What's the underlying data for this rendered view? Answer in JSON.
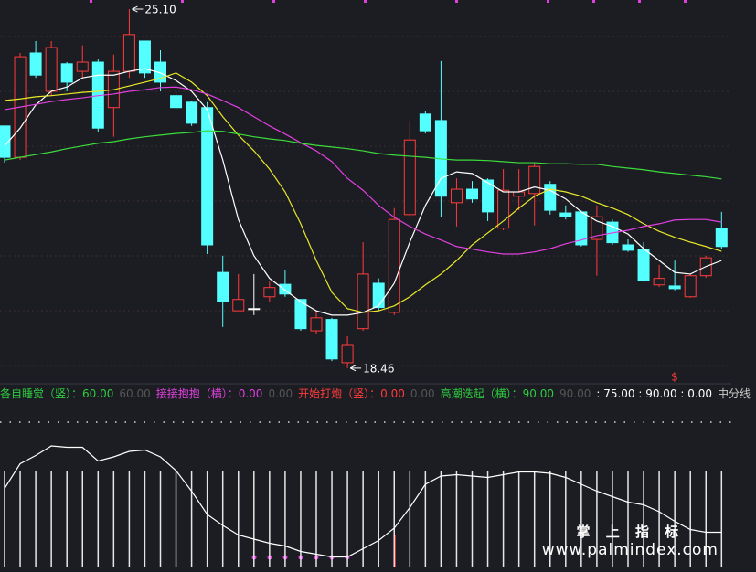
{
  "chart_data": {
    "type": "candlestick",
    "ylim": [
      18.17,
      25.27
    ],
    "candles": {
      "open": [
        22.94,
        22.36,
        24.29,
        23.58,
        24.09,
        23.95,
        24.12,
        23.28,
        23.95,
        24.51,
        24.12,
        23.5,
        23.38,
        23.28,
        20.23,
        19.52,
        19.56,
        19.78,
        20.01,
        19.73,
        19.15,
        19.36,
        18.56,
        19.19,
        20.03,
        19.49,
        21.3,
        23.16,
        23.04,
        21.52,
        21.77,
        21.94,
        21.05,
        21.64,
        21.69,
        21.86,
        21.33,
        21.35,
        20.84,
        21.16,
        20.74,
        20.66,
        20.0,
        19.98,
        19.78,
        20.17,
        21.05
      ],
      "high": [
        22.94,
        24.29,
        24.51,
        24.51,
        24.12,
        24.43,
        24.17,
        24.26,
        25.1,
        24.51,
        24.34,
        23.58,
        23.41,
        23.38,
        20.54,
        20.2,
        20.2,
        20.06,
        20.28,
        19.73,
        19.52,
        19.39,
        19.05,
        20.79,
        20.12,
        21.42,
        23.04,
        23.21,
        24.14,
        21.97,
        21.92,
        21.97,
        22.14,
        22.14,
        22.26,
        21.92,
        21.47,
        21.38,
        21.47,
        21.21,
        20.84,
        20.79,
        20.37,
        20.45,
        20.2,
        20.54,
        21.35
      ],
      "low": [
        22.26,
        22.31,
        23.83,
        23.5,
        23.58,
        23.83,
        22.82,
        22.74,
        23.83,
        23.83,
        23.58,
        23.24,
        22.94,
        20.57,
        19.22,
        19.52,
        19.44,
        19.69,
        19.78,
        19.15,
        19.1,
        18.59,
        18.46,
        19.15,
        19.52,
        19.44,
        21.25,
        22.8,
        21.25,
        21.08,
        21.52,
        21.18,
        21.01,
        21.38,
        21.1,
        21.3,
        21.21,
        20.71,
        20.17,
        20.74,
        20.61,
        20.06,
        19.96,
        19.9,
        19.76,
        20.13,
        20.67
      ],
      "close": [
        22.36,
        24.22,
        23.88,
        24.39,
        23.75,
        24.12,
        22.9,
        23.95,
        24.63,
        23.92,
        23.75,
        23.28,
        22.99,
        20.74,
        19.69,
        19.73,
        19.56,
        19.95,
        19.83,
        19.19,
        19.39,
        18.63,
        18.88,
        20.2,
        19.58,
        21.21,
        22.68,
        22.85,
        21.64,
        21.77,
        21.59,
        21.35,
        21.75,
        21.72,
        22.19,
        21.38,
        21.26,
        20.74,
        21.26,
        20.78,
        20.64,
        20.08,
        20.12,
        19.93,
        20.17,
        20.5,
        20.71
      ],
      "up_color": "#ff3b3b",
      "down_color": "#54ffff",
      "flat_color": "#ffffff"
    },
    "series": [
      {
        "color": "#ffffff",
        "values": [
          22.57,
          22.9,
          23.33,
          23.58,
          23.66,
          23.83,
          23.88,
          23.88,
          23.95,
          24.0,
          23.92,
          23.78,
          23.58,
          23.24,
          22.31,
          21.21,
          20.54,
          20.12,
          19.9,
          19.69,
          19.52,
          19.44,
          19.44,
          19.49,
          19.61,
          20.03,
          20.79,
          21.47,
          21.97,
          22.09,
          22.06,
          21.89,
          21.72,
          21.72,
          21.81,
          21.75,
          21.59,
          21.35,
          21.18,
          21.08,
          20.94,
          20.67,
          20.45,
          20.23,
          20.2,
          20.34,
          20.45
        ]
      },
      {
        "color": "#e8e82a",
        "values": [
          23.41,
          23.44,
          23.48,
          23.5,
          23.53,
          23.56,
          23.58,
          23.61,
          23.68,
          23.75,
          23.82,
          23.92,
          23.75,
          23.5,
          23.11,
          22.77,
          22.48,
          22.14,
          21.72,
          21.13,
          20.45,
          19.86,
          19.56,
          19.49,
          19.52,
          19.61,
          19.78,
          20.0,
          20.2,
          20.45,
          20.74,
          20.96,
          21.18,
          21.42,
          21.64,
          21.77,
          21.72,
          21.64,
          21.52,
          21.42,
          21.3,
          21.13,
          20.99,
          20.88,
          20.79,
          20.71,
          20.62
        ]
      },
      {
        "color": "#e040e0",
        "values": [
          23.24,
          23.29,
          23.34,
          23.39,
          23.43,
          23.46,
          23.5,
          23.53,
          23.58,
          23.61,
          23.65,
          23.66,
          23.61,
          23.53,
          23.41,
          23.28,
          23.11,
          22.94,
          22.79,
          22.63,
          22.48,
          22.28,
          21.97,
          21.75,
          21.47,
          21.25,
          21.08,
          20.94,
          20.83,
          20.71,
          20.66,
          20.61,
          20.57,
          20.57,
          20.61,
          20.67,
          20.76,
          20.83,
          20.91,
          20.96,
          21.01,
          21.08,
          21.13,
          21.2,
          21.21,
          21.21,
          21.16
        ]
      },
      {
        "color": "#3ddc3d",
        "values": [
          22.31,
          22.36,
          22.41,
          22.46,
          22.52,
          22.57,
          22.62,
          22.65,
          22.7,
          22.74,
          22.77,
          22.8,
          22.82,
          22.85,
          22.84,
          22.79,
          22.74,
          22.7,
          22.67,
          22.62,
          22.58,
          22.55,
          22.52,
          22.48,
          22.43,
          22.4,
          22.38,
          22.36,
          22.33,
          22.31,
          22.31,
          22.3,
          22.28,
          22.26,
          22.26,
          22.24,
          22.24,
          22.23,
          22.23,
          22.19,
          22.16,
          22.13,
          22.09,
          22.06,
          22.03,
          22.0,
          21.96
        ]
      }
    ],
    "annotations": [
      {
        "value": 25.1,
        "label": "25.10",
        "at": "high"
      },
      {
        "value": 18.46,
        "label": "18.46",
        "at": "low"
      }
    ],
    "indicator": {
      "ylim": [
        0,
        100
      ],
      "color": "#ffffff",
      "values": [
        57,
        75,
        81,
        88,
        87,
        87,
        77,
        80,
        84,
        85,
        80,
        70,
        55,
        38,
        30,
        23,
        20,
        17,
        15,
        11,
        9,
        7,
        7,
        13,
        19,
        28,
        43,
        60,
        66,
        67,
        66,
        65,
        67,
        69,
        69,
        68,
        65,
        60,
        55,
        51,
        47,
        45,
        40,
        33,
        27,
        25,
        25
      ],
      "legend": [
        {
          "text": "各自睡觉（竖）：60.00",
          "color": "#2ecc40"
        },
        {
          "text": "60.00",
          "color": "#555555"
        },
        {
          "text": "接接抱抱（横）：0.00",
          "color": "#e040e0"
        },
        {
          "text": "0.00",
          "color": "#555555"
        },
        {
          "text": "开始打炮（竖）：0.00",
          "color": "#ff3b3b"
        },
        {
          "text": "0.00",
          "color": "#555555"
        },
        {
          "text": "高潮迭起（横）：90.00",
          "color": "#2ecc40"
        },
        {
          "text": "90.00",
          "color": "#555555"
        },
        {
          "text": ": 75.00 : 90.00 : 0.00",
          "color": "#ffffff"
        },
        {
          "text": "中分线",
          "color": "#cccccc"
        }
      ]
    },
    "signal_mark": "$",
    "watermark": {
      "title": "掌 上 指 标",
      "url": "www.palmindex.com"
    }
  }
}
